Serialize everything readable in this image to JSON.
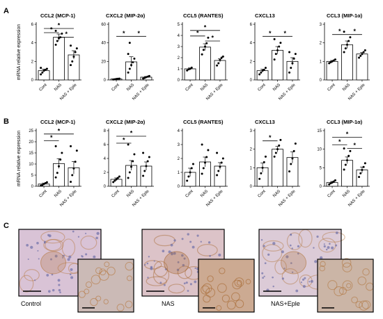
{
  "panel_labels": {
    "a": "A",
    "b": "B",
    "c": "C"
  },
  "ylabel": "mRNA relative expression",
  "chart_data": [
    {
      "type": "bar",
      "row": "A",
      "title": "CCL2 (MCP-1)",
      "categories": [
        "Cont",
        "NAS",
        "NAS + Eple"
      ],
      "values": [
        1.0,
        4.6,
        2.7
      ],
      "errors": [
        0.15,
        0.35,
        0.45
      ],
      "points": [
        [
          0.6,
          0.8,
          1.0,
          1.1,
          1.2,
          1.3
        ],
        [
          3.8,
          4.2,
          4.5,
          4.6,
          5.0,
          5.3
        ],
        [
          1.6,
          2.0,
          2.5,
          3.0,
          3.4,
          3.7
        ]
      ],
      "ylim": [
        0,
        6
      ],
      "yticks": [
        0,
        2,
        4,
        6
      ],
      "ytick_labels": [
        "0",
        "2",
        "4",
        "6"
      ],
      "ylabel": "mRNA relative expression",
      "significance": [
        {
          "from": 0,
          "to": 1,
          "level": 5.1,
          "label": "*"
        },
        {
          "from": 0,
          "to": 2,
          "level": 5.55,
          "label": "*"
        },
        {
          "from": 1,
          "to": 2,
          "level": 4.6,
          "label": "*"
        }
      ]
    },
    {
      "type": "bar",
      "row": "A",
      "title": "CXCL2 (MIP-2α)",
      "categories": [
        "Cont",
        "NAS",
        "NAS + Eple"
      ],
      "values": [
        1.0,
        19.5,
        3.0
      ],
      "errors": [
        0.3,
        5.5,
        0.7
      ],
      "points": [
        [
          0.5,
          0.7,
          1.0,
          1.2,
          1.4
        ],
        [
          8,
          12,
          16,
          19,
          23,
          28,
          40
        ],
        [
          1.5,
          2.2,
          3.0,
          3.6,
          4.2
        ]
      ],
      "ylim": [
        0,
        60
      ],
      "yticks": [
        0,
        20,
        40,
        60
      ],
      "ytick_labels": [
        "0",
        "20",
        "40",
        "60"
      ],
      "significance": [
        {
          "from": 0,
          "to": 1,
          "level": 47,
          "label": "*"
        },
        {
          "from": 1,
          "to": 2,
          "level": 47,
          "label": "*"
        }
      ]
    },
    {
      "type": "bar",
      "row": "A",
      "title": "CCL5 (RANTES)",
      "categories": [
        "Cont",
        "NAS",
        "NAS + Eple"
      ],
      "values": [
        1.0,
        2.95,
        1.75
      ],
      "errors": [
        0.08,
        0.3,
        0.15
      ],
      "points": [
        [
          0.85,
          0.95,
          1.0,
          1.1
        ],
        [
          2.3,
          2.7,
          3.0,
          3.3,
          3.8
        ],
        [
          1.3,
          1.5,
          1.8,
          2.0,
          2.1
        ]
      ],
      "ylim": [
        0,
        5
      ],
      "yticks": [
        0,
        1,
        2,
        3,
        4,
        5
      ],
      "ytick_labels": [
        "0",
        "1",
        "2",
        "3",
        "4",
        "5"
      ],
      "significance": [
        {
          "from": 0,
          "to": 1,
          "level": 3.95,
          "label": "*"
        },
        {
          "from": 0,
          "to": 2,
          "level": 4.45,
          "label": "*"
        },
        {
          "from": 1,
          "to": 2,
          "level": 3.5,
          "label": "*"
        }
      ]
    },
    {
      "type": "bar",
      "row": "A",
      "title": "CXCL13",
      "categories": [
        "Cont",
        "NAS",
        "NAS + Eple"
      ],
      "values": [
        1.0,
        3.2,
        2.0
      ],
      "errors": [
        0.15,
        0.4,
        0.4
      ],
      "points": [
        [
          0.6,
          0.8,
          1.0,
          1.1,
          1.3
        ],
        [
          2.2,
          2.8,
          3.2,
          3.6,
          4.0,
          4.4
        ],
        [
          0.8,
          1.3,
          1.8,
          2.3,
          2.8,
          3.0
        ]
      ],
      "ylim": [
        0,
        6
      ],
      "yticks": [
        0,
        2,
        4,
        6
      ],
      "ytick_labels": [
        "0",
        "2",
        "4",
        "6"
      ],
      "significance": [
        {
          "from": 0,
          "to": 1,
          "level": 4.7,
          "label": "*"
        },
        {
          "from": 1,
          "to": 2,
          "level": 4.7,
          "label": "*"
        }
      ]
    },
    {
      "type": "bar",
      "row": "A",
      "title": "CCL3 (MIP-1α)",
      "categories": [
        "Cont",
        "NAS",
        "NAS + Eple"
      ],
      "values": [
        1.0,
        1.9,
        1.4
      ],
      "errors": [
        0.05,
        0.2,
        0.08
      ],
      "points": [
        [
          0.9,
          0.95,
          1.0,
          1.05,
          1.1
        ],
        [
          1.5,
          1.7,
          1.9,
          2.1,
          2.3,
          2.6
        ],
        [
          1.2,
          1.3,
          1.4,
          1.5,
          1.6
        ]
      ],
      "ylim": [
        0,
        3
      ],
      "yticks": [
        0,
        1,
        2,
        3
      ],
      "ytick_labels": [
        "0",
        "1",
        "2",
        "3"
      ],
      "significance": [
        {
          "from": 0,
          "to": 1,
          "level": 2.45,
          "label": "*"
        },
        {
          "from": 1,
          "to": 2,
          "level": 2.45,
          "label": "*"
        }
      ]
    },
    {
      "type": "bar",
      "row": "B",
      "title": "CCL2 (MCP-1)",
      "categories": [
        "Cont",
        "NAS",
        "NAS + Eple"
      ],
      "values": [
        1.0,
        10.2,
        8.3
      ],
      "errors": [
        0.4,
        2.2,
        2.8
      ],
      "points": [
        [
          0.3,
          0.6,
          1.0,
          1.4,
          1.8
        ],
        [
          4,
          6,
          9,
          12,
          15,
          18
        ],
        [
          2,
          5,
          8,
          11,
          16,
          18
        ]
      ],
      "ylim": [
        0,
        25
      ],
      "yticks": [
        0,
        5,
        10,
        15,
        20,
        25
      ],
      "ytick_labels": [
        "0",
        "5",
        "10",
        "15",
        "20",
        "25"
      ],
      "ylabel": "mRNA relative expression",
      "significance": [
        {
          "from": 0,
          "to": 1,
          "level": 20.5,
          "label": "*"
        },
        {
          "from": 0,
          "to": 2,
          "level": 23.5,
          "label": "*"
        }
      ]
    },
    {
      "type": "bar",
      "row": "B",
      "title": "CXCL2 (MIP-2α)",
      "categories": [
        "Cont",
        "NAS",
        "NAS + Eple"
      ],
      "values": [
        1.0,
        3.0,
        2.9
      ],
      "errors": [
        0.2,
        0.7,
        0.6
      ],
      "points": [
        [
          0.6,
          0.8,
          1.0,
          1.2,
          1.4
        ],
        [
          1.2,
          2.0,
          2.8,
          3.6,
          4.6,
          6.0
        ],
        [
          1.5,
          2.2,
          2.9,
          3.6,
          4.2,
          4.8
        ]
      ],
      "ylim": [
        0,
        8
      ],
      "yticks": [
        0,
        2,
        4,
        6,
        8
      ],
      "ytick_labels": [
        "0",
        "2",
        "4",
        "6",
        "8"
      ],
      "significance": [
        {
          "from": 0,
          "to": 1,
          "level": 6.2,
          "label": "*"
        },
        {
          "from": 0,
          "to": 2,
          "level": 7.2,
          "label": "*"
        }
      ]
    },
    {
      "type": "bar",
      "row": "B",
      "title": "CCL5 (RANTES)",
      "categories": [
        "Cont",
        "NAS",
        "NAS + Eple"
      ],
      "values": [
        1.0,
        1.75,
        1.45
      ],
      "errors": [
        0.3,
        0.35,
        0.25
      ],
      "points": [
        [
          0.4,
          0.7,
          1.0,
          1.3,
          1.6
        ],
        [
          0.9,
          1.3,
          1.7,
          2.1,
          2.6,
          3.0
        ],
        [
          0.8,
          1.1,
          1.4,
          1.7,
          2.0,
          2.4
        ]
      ],
      "ylim": [
        0,
        4
      ],
      "yticks": [
        0,
        1,
        2,
        3,
        4
      ],
      "ytick_labels": [
        "0",
        "1",
        "2",
        "3",
        "4"
      ],
      "significance": []
    },
    {
      "type": "bar",
      "row": "B",
      "title": "CXCL13",
      "categories": [
        "Cont",
        "NAS",
        "NAS + Eple"
      ],
      "values": [
        1.0,
        2.0,
        1.55
      ],
      "errors": [
        0.25,
        0.15,
        0.3
      ],
      "points": [
        [
          0.4,
          0.7,
          1.0,
          1.3,
          1.6
        ],
        [
          1.6,
          1.8,
          2.0,
          2.2,
          2.5
        ],
        [
          0.8,
          1.2,
          1.5,
          1.9,
          2.3
        ]
      ],
      "ylim": [
        0,
        3
      ],
      "yticks": [
        0,
        1,
        2,
        3
      ],
      "ytick_labels": [
        "0",
        "1",
        "2",
        "3"
      ],
      "significance": [
        {
          "from": 0,
          "to": 1,
          "level": 2.45,
          "label": "*"
        }
      ]
    },
    {
      "type": "bar",
      "row": "B",
      "title": "CCL3 (MIP-1α)",
      "categories": [
        "Cont",
        "NAS",
        "NAS + Eple"
      ],
      "values": [
        1.0,
        7.0,
        4.4
      ],
      "errors": [
        0.3,
        0.9,
        0.8
      ],
      "points": [
        [
          0.5,
          0.8,
          1.0,
          1.3,
          1.6
        ],
        [
          4.5,
          5.8,
          7.0,
          8.2,
          9.5,
          10.2
        ],
        [
          2.5,
          3.5,
          4.4,
          5.2,
          6.2
        ]
      ],
      "ylim": [
        0,
        15
      ],
      "yticks": [
        0,
        5,
        10,
        15
      ],
      "ytick_labels": [
        "0",
        "5",
        "10",
        "15"
      ],
      "significance": [
        {
          "from": 0,
          "to": 1,
          "level": 11.2,
          "label": "*"
        },
        {
          "from": 0,
          "to": 2,
          "level": 13.2,
          "label": "*"
        },
        {
          "from": 1,
          "to": 2,
          "level": 10.2,
          "label": "*"
        }
      ]
    }
  ],
  "micrographs": [
    {
      "label": "Control",
      "main_tone": "#d9c3d6",
      "inset_tone": "#cbbab6",
      "stain": "#b5783f"
    },
    {
      "label": "NAS",
      "main_tone": "#dcc3c8",
      "inset_tone": "#ccaa92",
      "stain": "#a5652d"
    },
    {
      "label": "NAS+Eple",
      "main_tone": "#dccbd7",
      "inset_tone": "#cbb5a6",
      "stain": "#b17740"
    }
  ]
}
